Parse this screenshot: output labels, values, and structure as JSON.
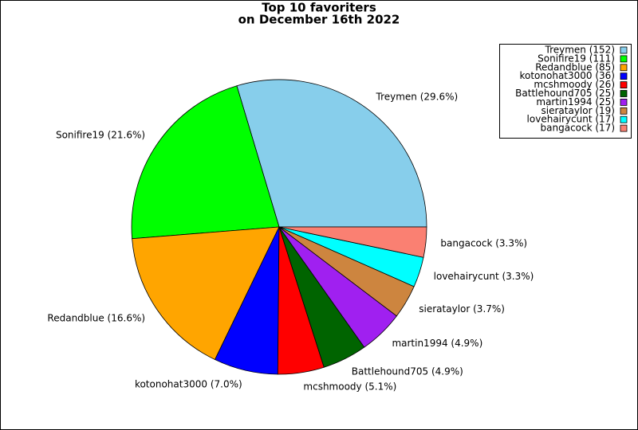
{
  "chart_data": {
    "type": "pie",
    "title_lines": [
      "Top 10 favoriters",
      "on December 16th 2022"
    ],
    "values": [
      152,
      111,
      85,
      36,
      26,
      25,
      25,
      19,
      17,
      17
    ],
    "slice_labels": [
      "Treymen (29.6%)",
      "Sonifire19 (21.6%)",
      "Redandblue (16.6%)",
      "kotonohat3000 (7.0%)",
      "mcshmoody (5.1%)",
      "Battlehound705 (4.9%)",
      "martin1994 (4.9%)",
      "sierataylor (3.7%)",
      "lovehairycunt (3.3%)",
      "bangacock (3.3%)"
    ],
    "legend_labels": [
      "Treymen (152)",
      "Sonifire19 (111)",
      "Redandblue (85)",
      "kotonohat3000 (36)",
      "mcshmoody (26)",
      "Battlehound705 (25)",
      "martin1994 (25)",
      "sierataylor (19)",
      "lovehairycunt (17)",
      "bangacock (17)"
    ],
    "colors": [
      "#87ceeb",
      "#00ff00",
      "#ffa500",
      "#0000ff",
      "#ff0000",
      "#006400",
      "#a020f0",
      "#cd853f",
      "#00ffff",
      "#fa8072"
    ],
    "legend": "upper right"
  }
}
